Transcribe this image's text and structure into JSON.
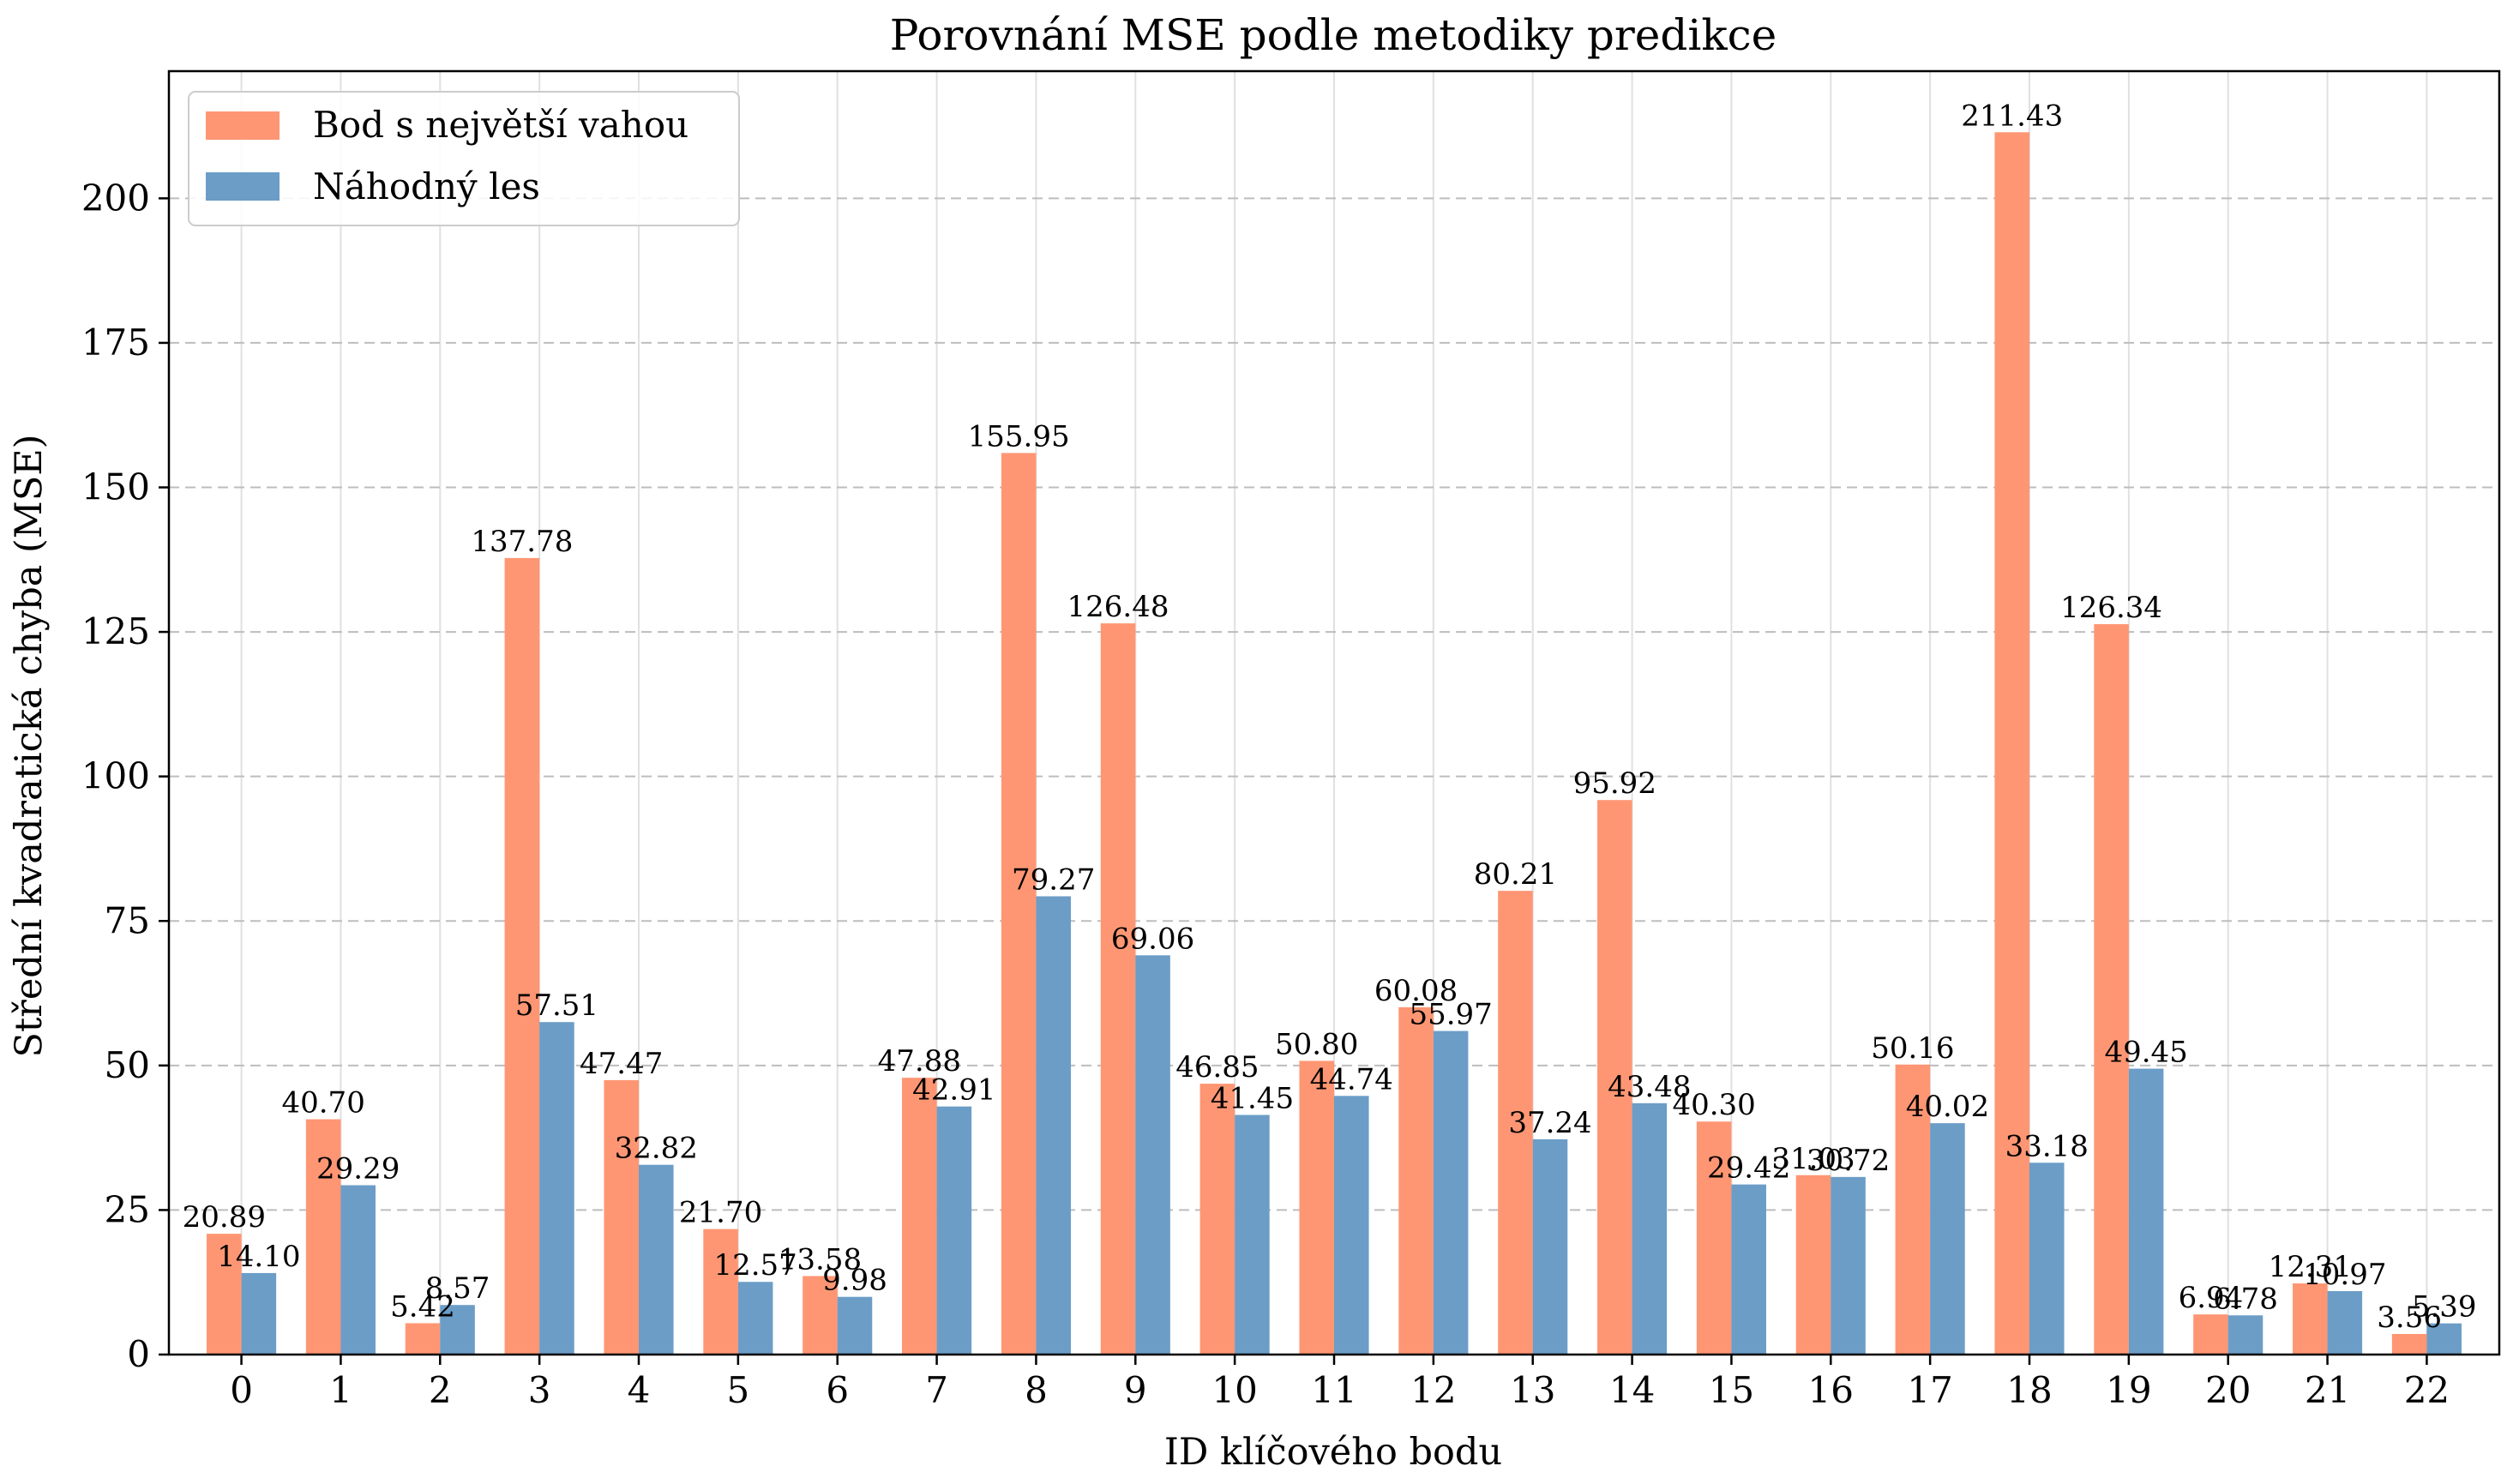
{
  "chart_data": {
    "type": "bar",
    "title": "Porovnání MSE podle metodiky predikce",
    "xlabel": "ID klíčového bodu",
    "ylabel": "Střední kvadratická chyba (MSE)",
    "categories": [
      "0",
      "1",
      "2",
      "3",
      "4",
      "5",
      "6",
      "7",
      "8",
      "9",
      "10",
      "11",
      "12",
      "13",
      "14",
      "15",
      "16",
      "17",
      "18",
      "19",
      "20",
      "21",
      "22"
    ],
    "series": [
      {
        "name": "Bod s největší vahou",
        "color": "#ff9673",
        "values": [
          20.89,
          40.7,
          5.42,
          137.78,
          47.47,
          21.7,
          13.58,
          47.88,
          155.95,
          126.48,
          46.85,
          50.8,
          60.08,
          80.21,
          95.92,
          40.3,
          31.03,
          50.16,
          211.43,
          126.34,
          6.94,
          12.31,
          3.56
        ],
        "labels": [
          "20.89",
          "40.70",
          "5.42",
          "137.78",
          "47.47",
          "21.70",
          "13.58",
          "47.88",
          "155.95",
          "126.48",
          "46.85",
          "50.80",
          "60.08",
          "80.21",
          "95.92",
          "40.30",
          "31.03",
          "50.16",
          "211.43",
          "126.34",
          "6.94",
          "12.31",
          "3.56"
        ]
      },
      {
        "name": "Náhodný les",
        "color": "#6b9dc7",
        "values": [
          14.1,
          29.29,
          8.57,
          57.51,
          32.82,
          12.57,
          9.98,
          42.91,
          79.27,
          69.06,
          41.45,
          44.74,
          55.97,
          37.24,
          43.48,
          29.42,
          30.72,
          40.02,
          33.18,
          49.45,
          6.78,
          10.97,
          5.39
        ],
        "labels": [
          "14.10",
          "29.29",
          "8.57",
          "57.51",
          "32.82",
          "12.57",
          "9.98",
          "42.91",
          "79.27",
          "69.06",
          "41.45",
          "44.74",
          "55.97",
          "37.24",
          "43.48",
          "29.42",
          "30.72",
          "40.02",
          "33.18",
          "49.45",
          "6.78",
          "10.97",
          "5.39"
        ]
      }
    ],
    "ylim": [
      0,
      222
    ],
    "yticks": [
      0,
      25,
      50,
      75,
      100,
      125,
      150,
      175,
      200
    ],
    "ytick_labels": [
      "0",
      "25",
      "50",
      "75",
      "100",
      "125",
      "150",
      "175",
      "200"
    ],
    "grid": true,
    "legend_position": "top-left"
  }
}
